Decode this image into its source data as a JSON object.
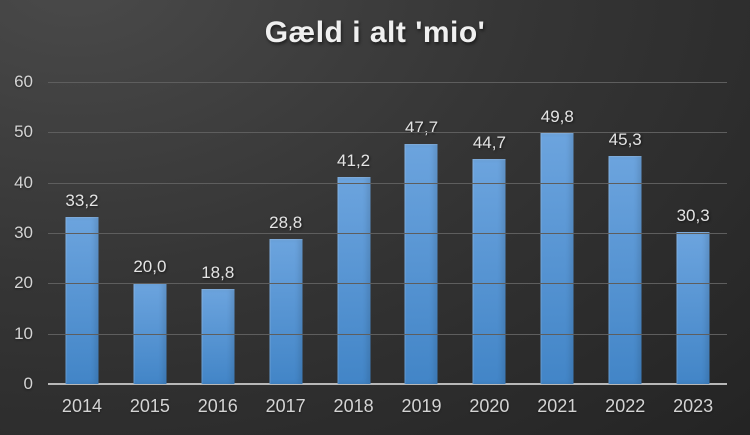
{
  "chart_data": {
    "type": "bar",
    "title": "Gæld i alt 'mio'",
    "xlabel": "",
    "ylabel": "",
    "categories": [
      "2014",
      "2015",
      "2016",
      "2017",
      "2018",
      "2019",
      "2020",
      "2021",
      "2022",
      "2023"
    ],
    "values": [
      33.2,
      20.0,
      18.8,
      28.8,
      41.2,
      47.7,
      44.7,
      49.8,
      45.3,
      30.3
    ],
    "value_labels": [
      "33,2",
      "20,0",
      "18,8",
      "28,8",
      "41,2",
      "47,7",
      "44,7",
      "49,8",
      "45,3",
      "30,3"
    ],
    "ylim": [
      0,
      60
    ],
    "yticks": [
      0,
      10,
      20,
      30,
      40,
      50,
      60
    ],
    "grid": true,
    "legend_position": "none",
    "colors": {
      "bar_top": "#6ca4de",
      "bar_bottom": "#4285c7",
      "gridline": "#5e5e5e",
      "axis_line": "#b8b8b8",
      "tick_label": "#d4d4d4",
      "value_label": "#e4e4e4",
      "title": "#f0f0f0",
      "background_light": "#4a4a4a",
      "background_mid": "#353535",
      "background_dark": "#242424"
    }
  }
}
